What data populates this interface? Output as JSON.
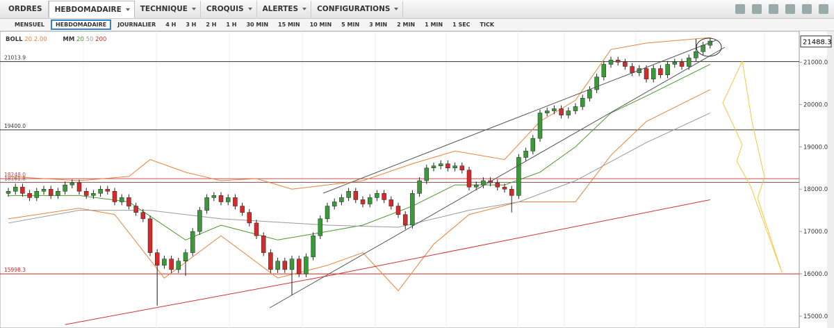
{
  "menu": [
    "ORDRES",
    "HEBDOMADAIRE",
    "TECHNIQUE",
    "CROQUIS",
    "ALERTES",
    "CONFIGURATIONS"
  ],
  "timeframes": [
    "MENSUEL",
    "HEBDOMADAIRE",
    "JOURNALIER",
    "4 H",
    "3 H",
    "2 H",
    "1 H",
    "30 MIN",
    "15 MIN",
    "10 MIN",
    "5 MIN",
    "3 MIN",
    "2 MIN",
    "1 MIN",
    "1 SEC",
    "TICK"
  ],
  "legend": {
    "boll": {
      "label": "BOLL",
      "params": [
        "20",
        "2.00"
      ],
      "color": "#e8843a"
    },
    "mm": {
      "label": "MM",
      "params": [
        "20",
        "50",
        "200"
      ],
      "colors": [
        "#4a9a2a",
        "#999999",
        "#d33030"
      ]
    }
  },
  "chart_data": {
    "type": "candlestick",
    "ylim": [
      14720,
      21730
    ],
    "yticks": [
      {
        "value": 15000,
        "label": "15000.0"
      },
      {
        "value": 16000,
        "label": "16000.0"
      },
      {
        "value": 17000,
        "label": "17000.0"
      },
      {
        "value": 18000,
        "label": "18000.0"
      },
      {
        "value": 19000,
        "label": "19000.0"
      },
      {
        "value": 20000,
        "label": "20000.0"
      },
      {
        "value": 21000,
        "label": "21000.0"
      }
    ],
    "last_price": {
      "value": 21488.3,
      "label": "21488.3"
    },
    "levels": [
      {
        "value": 21013.9,
        "label": "21013.9",
        "color": "#333333"
      },
      {
        "value": 19400,
        "label": "19400.0",
        "color": "#333333"
      },
      {
        "value": 18248,
        "label": "18248.0",
        "color": "#c0504d"
      },
      {
        "value": 18161.8,
        "label": "18161.8",
        "color": "#8b4a4a"
      },
      {
        "value": 15998.3,
        "label": "15998.3",
        "color": "#d32020"
      }
    ],
    "up_color": "#3a9a3a",
    "down_color": "#d32b2b",
    "open": [
      17900,
      17950,
      18050,
      17900,
      17800,
      17950,
      18000,
      17850,
      17950,
      18100,
      18150,
      17950,
      17850,
      17900,
      18000,
      17950,
      17700,
      17800,
      17600,
      17450,
      17300,
      16500,
      16200,
      16350,
      16100,
      16300,
      16500,
      17000,
      17500,
      17800,
      17850,
      17700,
      17800,
      17600,
      17450,
      17200,
      16900,
      16500,
      16100,
      16300,
      16100,
      16350,
      16000,
      16400,
      16900,
      17300,
      17600,
      17700,
      17800,
      17950,
      17750,
      17650,
      17800,
      17900,
      17750,
      17600,
      17400,
      17150,
      17900,
      18200,
      18500,
      18550,
      18600,
      18500,
      18550,
      18450,
      18050,
      18100,
      18200,
      18150,
      18050,
      18000,
      17850,
      18750,
      18900,
      19200,
      19800,
      19850,
      19900,
      19750,
      19850,
      19950,
      20150,
      20350,
      20650,
      20950,
      21050,
      21000,
      20900,
      20750,
      20850,
      20600,
      20850,
      20700,
      20950,
      21000,
      20900,
      21100,
      21250,
      21400
    ],
    "high": [
      18030,
      18130,
      18130,
      17980,
      18030,
      18080,
      18080,
      18030,
      18180,
      18230,
      18230,
      18030,
      17980,
      18080,
      18080,
      18030,
      17880,
      17880,
      17680,
      17530,
      17380,
      16580,
      16430,
      16430,
      16380,
      16580,
      17080,
      17580,
      17880,
      17930,
      17930,
      17880,
      17880,
      17680,
      17530,
      17280,
      16980,
      16580,
      16380,
      16380,
      16430,
      16430,
      16480,
      16980,
      17380,
      17680,
      17780,
      17880,
      18030,
      18030,
      17830,
      17880,
      17980,
      17980,
      17830,
      17680,
      17480,
      17980,
      18280,
      18580,
      18630,
      18680,
      18680,
      18630,
      18630,
      18530,
      18180,
      18280,
      18280,
      18230,
      18130,
      18080,
      18830,
      18980,
      19280,
      19880,
      19930,
      19980,
      19980,
      19930,
      20030,
      20230,
      20430,
      20730,
      21030,
      21130,
      21130,
      21080,
      20980,
      20930,
      20930,
      20930,
      20930,
      21030,
      21080,
      21080,
      21180,
      21550,
      21480,
      21580
    ],
    "low": [
      17820,
      17870,
      17820,
      17720,
      17720,
      17870,
      17770,
      17770,
      17870,
      18020,
      17870,
      17770,
      17770,
      17820,
      17870,
      17620,
      17620,
      17520,
      17370,
      17220,
      16420,
      15250,
      16120,
      16020,
      16020,
      15950,
      16420,
      16920,
      17420,
      17720,
      17620,
      17620,
      17520,
      17370,
      17120,
      16820,
      16420,
      16020,
      16020,
      16020,
      15500,
      15920,
      15920,
      16320,
      16820,
      17220,
      17520,
      17620,
      17720,
      17670,
      17570,
      17570,
      17720,
      17670,
      17520,
      17320,
      17050,
      17070,
      17820,
      18120,
      18420,
      18470,
      18420,
      18420,
      18370,
      17970,
      17970,
      18020,
      18070,
      17970,
      17920,
      17450,
      17770,
      18670,
      18820,
      19120,
      19720,
      19770,
      19670,
      19670,
      19770,
      19870,
      20070,
      20270,
      20570,
      20870,
      20920,
      20820,
      20670,
      20670,
      20520,
      20520,
      20620,
      20620,
      20870,
      20820,
      20820,
      21020,
      21170,
      21320
    ],
    "close": [
      17950,
      18050,
      17900,
      17800,
      17950,
      18000,
      17850,
      17950,
      18100,
      18150,
      17950,
      17850,
      17900,
      18000,
      17950,
      17700,
      17800,
      17600,
      17450,
      17300,
      16500,
      16200,
      16350,
      16100,
      16300,
      16500,
      17000,
      17500,
      17800,
      17850,
      17700,
      17800,
      17600,
      17450,
      17200,
      16900,
      16500,
      16100,
      16300,
      16100,
      16350,
      16000,
      16400,
      16900,
      17300,
      17600,
      17700,
      17800,
      17950,
      17750,
      17650,
      17800,
      17900,
      17750,
      17600,
      17400,
      17150,
      17900,
      18200,
      18500,
      18550,
      18600,
      18500,
      18550,
      18450,
      18050,
      18100,
      18200,
      18150,
      18050,
      18000,
      17850,
      18750,
      18900,
      19200,
      19800,
      19850,
      19900,
      19750,
      19850,
      19950,
      20150,
      20350,
      20650,
      20950,
      21050,
      21000,
      20900,
      20750,
      20850,
      20600,
      20850,
      20700,
      20950,
      21000,
      20900,
      21100,
      21250,
      21400,
      21500
    ],
    "overlays": [
      {
        "color": "#e8843a",
        "x": [
          0,
          10,
          17,
          20,
          25,
          30,
          35,
          40,
          45,
          50,
          57,
          63,
          70,
          75,
          80,
          85,
          90,
          99
        ],
        "values": [
          18300,
          18200,
          18300,
          18700,
          18400,
          18200,
          18250,
          18000,
          18100,
          18200,
          18600,
          18900,
          18700,
          19600,
          20100,
          21300,
          21450,
          21580
        ]
      },
      {
        "color": "#e8843a",
        "x": [
          0,
          10,
          15,
          22,
          30,
          38,
          45,
          50,
          55,
          60,
          65,
          72,
          80,
          85,
          90,
          99
        ],
        "values": [
          17300,
          17550,
          17400,
          15900,
          16900,
          15900,
          16200,
          16500,
          15600,
          16700,
          17400,
          17700,
          17700,
          18800,
          19600,
          20350
        ]
      },
      {
        "color": "#4a9a2a",
        "x": [
          0,
          10,
          17,
          25,
          30,
          38,
          45,
          50,
          57,
          63,
          70,
          75,
          80,
          85,
          90,
          99
        ],
        "values": [
          17850,
          17850,
          17700,
          16800,
          17150,
          16800,
          17000,
          17150,
          17600,
          18100,
          18100,
          18400,
          19000,
          19800,
          20200,
          20950
        ]
      },
      {
        "color": "#999999",
        "x": [
          0,
          10,
          20,
          30,
          45,
          55,
          65,
          72,
          80,
          90,
          99
        ],
        "values": [
          17200,
          17500,
          17500,
          17300,
          17150,
          17100,
          17500,
          17700,
          18200,
          19100,
          19800
        ]
      },
      {
        "color": "#d33030",
        "x": [
          8,
          45,
          99
        ],
        "values": [
          14800,
          15950,
          17750
        ]
      }
    ]
  }
}
